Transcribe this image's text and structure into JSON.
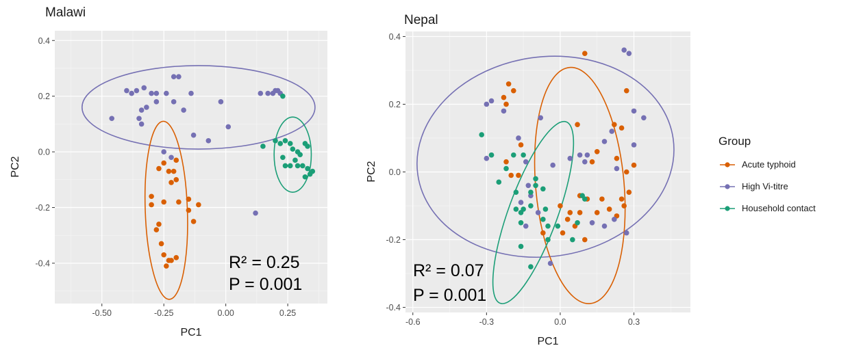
{
  "legend": {
    "title": "Group",
    "items": [
      {
        "label": "Acute typhoid",
        "color": "#d95f02"
      },
      {
        "label": "High Vi-titre",
        "color": "#7570b3"
      },
      {
        "label": "Household contact",
        "color": "#1b9e77"
      }
    ]
  },
  "chart_data": [
    {
      "type": "scatter",
      "title": "Malawi",
      "xlabel": "PC1",
      "ylabel": "PC2",
      "xlim": [
        -0.69,
        0.41
      ],
      "ylim": [
        -0.545,
        0.435
      ],
      "xticks": [
        -0.5,
        -0.25,
        0.0,
        0.25
      ],
      "xtick_labels": [
        "-0.50",
        "-0.25",
        "0.00",
        "0.25"
      ],
      "yticks": [
        -0.4,
        -0.2,
        0.0,
        0.2,
        0.4
      ],
      "ytick_labels": [
        "-0.4",
        "-0.2",
        "0.0",
        "0.2",
        "0.4"
      ],
      "grid": true,
      "stats": {
        "r2_label": "R² = 0.25",
        "p_label": "P = 0.001"
      },
      "ellipses": [
        {
          "group": "High Vi-titre",
          "cx": -0.11,
          "cy": 0.16,
          "rx": 0.47,
          "ry": 0.15,
          "angle": 0
        },
        {
          "group": "Acute typhoid",
          "cx": -0.24,
          "cy": -0.21,
          "rx": 0.085,
          "ry": 0.32,
          "angle": -2
        },
        {
          "group": "Household contact",
          "cx": 0.27,
          "cy": -0.01,
          "rx": 0.075,
          "ry": 0.135,
          "angle": 0
        }
      ],
      "series": [
        {
          "name": "Acute typhoid",
          "color": "#d95f02",
          "points": [
            [
              -0.25,
              -0.04
            ],
            [
              -0.23,
              -0.07
            ],
            [
              -0.27,
              -0.06
            ],
            [
              -0.21,
              -0.07
            ],
            [
              -0.2,
              -0.1
            ],
            [
              -0.22,
              -0.11
            ],
            [
              -0.2,
              -0.03
            ],
            [
              -0.3,
              -0.16
            ],
            [
              -0.3,
              -0.19
            ],
            [
              -0.25,
              -0.18
            ],
            [
              -0.19,
              -0.18
            ],
            [
              -0.15,
              -0.17
            ],
            [
              -0.11,
              -0.19
            ],
            [
              -0.13,
              -0.25
            ],
            [
              -0.15,
              -0.21
            ],
            [
              -0.27,
              -0.26
            ],
            [
              -0.28,
              -0.28
            ],
            [
              -0.26,
              -0.33
            ],
            [
              -0.25,
              -0.37
            ],
            [
              -0.23,
              -0.39
            ],
            [
              -0.22,
              -0.39
            ],
            [
              -0.24,
              -0.41
            ],
            [
              -0.2,
              -0.38
            ]
          ]
        },
        {
          "name": "High Vi-titre",
          "color": "#7570b3",
          "points": [
            [
              -0.46,
              0.12
            ],
            [
              -0.4,
              0.22
            ],
            [
              -0.38,
              0.21
            ],
            [
              -0.36,
              0.22
            ],
            [
              -0.33,
              0.23
            ],
            [
              -0.3,
              0.21
            ],
            [
              -0.28,
              0.21
            ],
            [
              -0.24,
              0.21
            ],
            [
              -0.21,
              0.27
            ],
            [
              -0.19,
              0.27
            ],
            [
              -0.21,
              0.18
            ],
            [
              -0.14,
              0.21
            ],
            [
              -0.34,
              0.15
            ],
            [
              -0.32,
              0.16
            ],
            [
              -0.35,
              0.12
            ],
            [
              -0.34,
              0.1
            ],
            [
              -0.28,
              0.18
            ],
            [
              -0.17,
              0.15
            ],
            [
              -0.02,
              0.18
            ],
            [
              0.01,
              0.09
            ],
            [
              -0.13,
              0.06
            ],
            [
              -0.07,
              0.04
            ],
            [
              -0.25,
              0.0
            ],
            [
              -0.22,
              -0.02
            ],
            [
              0.14,
              0.21
            ],
            [
              0.17,
              0.21
            ],
            [
              0.19,
              0.21
            ],
            [
              0.2,
              0.22
            ],
            [
              0.21,
              0.22
            ],
            [
              0.22,
              0.21
            ],
            [
              0.12,
              -0.22
            ]
          ]
        },
        {
          "name": "Household contact",
          "color": "#1b9e77",
          "points": [
            [
              0.23,
              0.2
            ],
            [
              0.2,
              0.04
            ],
            [
              0.22,
              0.03
            ],
            [
              0.24,
              0.04
            ],
            [
              0.26,
              0.03
            ],
            [
              0.32,
              0.03
            ],
            [
              0.33,
              0.02
            ],
            [
              0.27,
              0.01
            ],
            [
              0.29,
              0.0
            ],
            [
              0.3,
              -0.01
            ],
            [
              0.28,
              -0.03
            ],
            [
              0.26,
              -0.05
            ],
            [
              0.29,
              -0.05
            ],
            [
              0.31,
              -0.05
            ],
            [
              0.33,
              -0.06
            ],
            [
              0.35,
              -0.07
            ],
            [
              0.32,
              -0.09
            ],
            [
              0.34,
              -0.08
            ],
            [
              0.23,
              -0.02
            ],
            [
              0.24,
              -0.05
            ],
            [
              0.15,
              0.02
            ]
          ]
        }
      ]
    },
    {
      "type": "scatter",
      "title": "Nepal",
      "xlabel": "PC1",
      "ylabel": "PC2",
      "xlim": [
        -0.63,
        0.53
      ],
      "ylim": [
        -0.415,
        0.415
      ],
      "xticks": [
        -0.6,
        -0.3,
        0.0,
        0.3
      ],
      "xtick_labels": [
        "-0.6",
        "-0.3",
        "0.0",
        "0.3"
      ],
      "yticks": [
        -0.4,
        -0.2,
        0.0,
        0.2,
        0.4
      ],
      "ytick_labels": [
        "-0.4",
        "-0.2",
        "0.0",
        "0.2",
        "0.4"
      ],
      "grid": true,
      "stats": {
        "r2_label": "R² = 0.07",
        "p_label": "P = 0.001"
      },
      "ellipses": [
        {
          "group": "High Vi-titre",
          "cx": -0.06,
          "cy": 0.045,
          "rx": 0.525,
          "ry": 0.295,
          "angle": -8
        },
        {
          "group": "Acute typhoid",
          "cx": 0.08,
          "cy": -0.04,
          "rx": 0.18,
          "ry": 0.35,
          "angle": -5
        },
        {
          "group": "Household contact",
          "cx": -0.11,
          "cy": -0.12,
          "rx": 0.1,
          "ry": 0.285,
          "angle": 20
        }
      ],
      "series": [
        {
          "name": "Acute typhoid",
          "color": "#d95f02",
          "points": [
            [
              0.1,
              0.35
            ],
            [
              -0.21,
              0.26
            ],
            [
              -0.19,
              0.24
            ],
            [
              -0.23,
              0.22
            ],
            [
              -0.22,
              0.2
            ],
            [
              -0.16,
              0.08
            ],
            [
              0.07,
              0.14
            ],
            [
              0.27,
              0.24
            ],
            [
              0.22,
              0.14
            ],
            [
              0.25,
              0.13
            ],
            [
              0.15,
              0.06
            ],
            [
              0.13,
              0.03
            ],
            [
              0.3,
              0.02
            ],
            [
              0.23,
              0.04
            ],
            [
              0.27,
              0.0
            ],
            [
              -0.22,
              0.03
            ],
            [
              -0.2,
              -0.01
            ],
            [
              -0.17,
              -0.01
            ],
            [
              0.08,
              -0.07
            ],
            [
              0.11,
              -0.08
            ],
            [
              0.0,
              -0.1
            ],
            [
              0.04,
              -0.12
            ],
            [
              0.08,
              -0.12
            ],
            [
              0.03,
              -0.14
            ],
            [
              0.06,
              -0.16
            ],
            [
              0.01,
              -0.18
            ],
            [
              0.1,
              -0.2
            ],
            [
              0.17,
              -0.08
            ],
            [
              0.2,
              -0.11
            ],
            [
              0.25,
              -0.08
            ],
            [
              0.28,
              -0.06
            ],
            [
              0.26,
              -0.1
            ],
            [
              0.15,
              -0.12
            ],
            [
              0.23,
              -0.13
            ],
            [
              -0.07,
              -0.18
            ]
          ]
        },
        {
          "name": "High Vi-titre",
          "color": "#7570b3",
          "points": [
            [
              0.26,
              0.36
            ],
            [
              0.28,
              0.35
            ],
            [
              -0.28,
              0.21
            ],
            [
              -0.3,
              0.2
            ],
            [
              -0.23,
              0.18
            ],
            [
              -0.08,
              0.16
            ],
            [
              -0.17,
              0.1
            ],
            [
              0.18,
              0.09
            ],
            [
              0.21,
              0.12
            ],
            [
              0.3,
              0.18
            ],
            [
              0.34,
              0.16
            ],
            [
              0.3,
              0.08
            ],
            [
              0.11,
              0.05
            ],
            [
              0.08,
              0.05
            ],
            [
              0.1,
              0.03
            ],
            [
              0.04,
              0.04
            ],
            [
              -0.03,
              0.02
            ],
            [
              -0.28,
              0.05
            ],
            [
              -0.3,
              0.04
            ],
            [
              -0.14,
              0.03
            ],
            [
              -0.13,
              -0.04
            ],
            [
              -0.16,
              -0.09
            ],
            [
              -0.12,
              -0.07
            ],
            [
              -0.09,
              -0.12
            ],
            [
              -0.14,
              -0.16
            ],
            [
              0.13,
              -0.15
            ],
            [
              0.18,
              -0.16
            ],
            [
              0.22,
              -0.14
            ],
            [
              0.27,
              -0.18
            ],
            [
              -0.04,
              -0.27
            ],
            [
              0.23,
              0.01
            ]
          ]
        },
        {
          "name": "Household contact",
          "color": "#1b9e77",
          "points": [
            [
              -0.32,
              0.11
            ],
            [
              -0.28,
              0.05
            ],
            [
              -0.19,
              0.05
            ],
            [
              -0.22,
              0.01
            ],
            [
              -0.15,
              0.05
            ],
            [
              -0.25,
              -0.03
            ],
            [
              -0.1,
              -0.04
            ],
            [
              -0.1,
              -0.02
            ],
            [
              -0.18,
              -0.06
            ],
            [
              -0.12,
              -0.06
            ],
            [
              -0.07,
              -0.05
            ],
            [
              -0.12,
              -0.1
            ],
            [
              -0.15,
              -0.11
            ],
            [
              -0.18,
              -0.11
            ],
            [
              -0.16,
              -0.12
            ],
            [
              -0.06,
              -0.11
            ],
            [
              -0.16,
              -0.15
            ],
            [
              -0.07,
              -0.14
            ],
            [
              -0.05,
              -0.16
            ],
            [
              -0.01,
              -0.16
            ],
            [
              -0.05,
              -0.2
            ],
            [
              -0.16,
              -0.22
            ],
            [
              0.07,
              -0.15
            ],
            [
              0.1,
              -0.08
            ],
            [
              0.09,
              -0.07
            ],
            [
              -0.12,
              -0.28
            ],
            [
              0.05,
              -0.2
            ]
          ]
        }
      ]
    }
  ]
}
